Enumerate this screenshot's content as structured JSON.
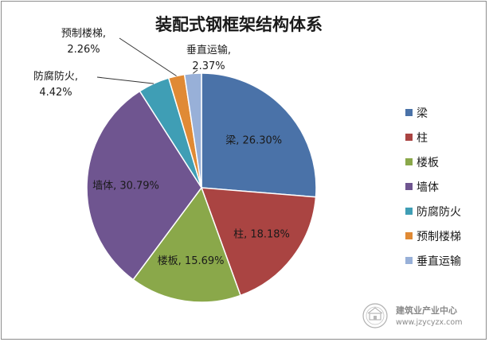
{
  "chart_data": {
    "type": "pie",
    "title": "装配式钢框架结构体系",
    "slices": [
      {
        "label": "梁",
        "value": 26.3,
        "value_text": "26.30%",
        "color": "#4A72A8"
      },
      {
        "label": "柱",
        "value": 18.18,
        "value_text": "18.18%",
        "color": "#AA4442"
      },
      {
        "label": "楼板",
        "value": 15.69,
        "value_text": "15.69%",
        "color": "#8AA84A"
      },
      {
        "label": "墙体",
        "value": 30.79,
        "value_text": "30.79%",
        "color": "#6F5590"
      },
      {
        "label": "防腐防火",
        "value": 4.42,
        "value_text": "4.42%",
        "color": "#3F9EB5"
      },
      {
        "label": "预制楼梯",
        "value": 2.26,
        "value_text": "2.26%",
        "color": "#E08A35"
      },
      {
        "label": "垂直运输",
        "value": 2.37,
        "value_text": "2.37%",
        "color": "#98B0D8"
      }
    ],
    "legend_position": "right"
  },
  "watermark": {
    "name": "建筑业产业中心",
    "url": "www.jzycyzx.com"
  }
}
